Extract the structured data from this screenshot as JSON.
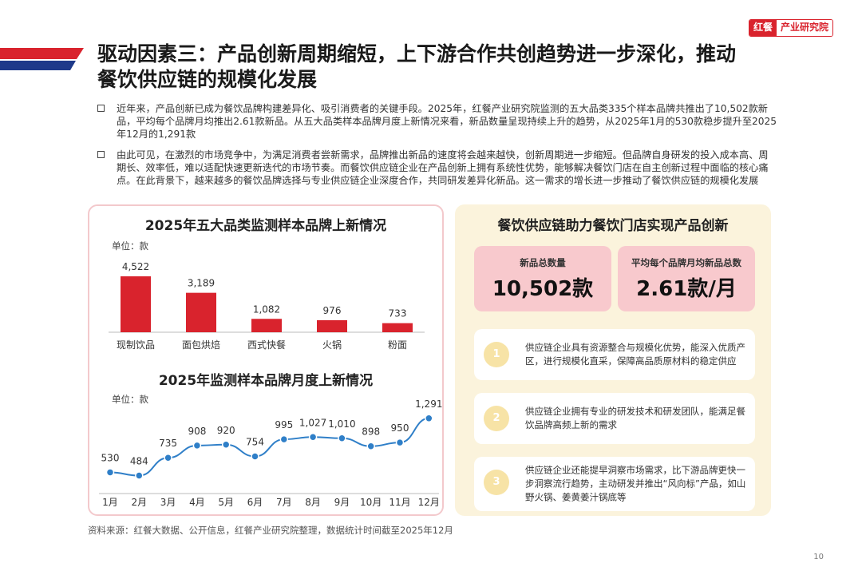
{
  "header": {
    "title": "驱动因素三：产品创新周期缩短，上下游合作共创趋势进一步深化，推动餐饮供应链的规模化发展",
    "logo_mark": "红餐",
    "logo_text": "产业研究院",
    "accent": "#d9232d"
  },
  "paragraphs": [
    "近年来，产品创新已成为餐饮品牌构建差异化、吸引消费者的关键手段。2025年，红餐产业研究院监测的五大品类335个样本品牌共推出了10,502款新品，平均每个品牌月均推出2.61款新品。从五大品类样本品牌月度上新情况来看，新品数量呈现持续上升的趋势，从2025年1月的530款稳步提升至2025年12月的1,291款",
    "由此可见，在激烈的市场竞争中，为满足消费者尝新需求，品牌推出新品的速度将会越来越快，创新周期进一步缩短。但品牌自身研发的投入成本高、周期长、效率低，难以适配快速更新迭代的市场节奏。而餐饮供应链企业在产品创新上拥有系统性优势，能够解决餐饮门店在自主创新过程中面临的核心痛点。在此背景下，越来越多的餐饮品牌选择与专业供应链企业深度合作，共同研发差异化新品。这一需求的增长进一步推动了餐饮供应链的规模化发展"
  ],
  "chart_data": [
    {
      "type": "bar",
      "title": "2025年五大品类监测样本品牌上新情况",
      "unit": "单位：款",
      "categories": [
        "现制饮品",
        "面包烘焙",
        "西式快餐",
        "火锅",
        "粉面"
      ],
      "values": [
        4522,
        3189,
        1082,
        976,
        733
      ],
      "value_labels": [
        "4,522",
        "3,189",
        "1,082",
        "976",
        "733"
      ],
      "color": "#d9232d"
    },
    {
      "type": "line",
      "title": "2025年监测样本品牌月度上新情况",
      "unit": "单位：款",
      "categories": [
        "1月",
        "2月",
        "3月",
        "4月",
        "5月",
        "6月",
        "7月",
        "8月",
        "9月",
        "10月",
        "11月",
        "12月"
      ],
      "values": [
        530,
        484,
        735,
        908,
        920,
        754,
        995,
        1027,
        1010,
        898,
        950,
        1291
      ],
      "value_labels": [
        "530",
        "484",
        "735",
        "908",
        "920",
        "754",
        "995",
        "1,027",
        "1,010",
        "898",
        "950",
        "1,291"
      ],
      "color": "#2f7fc8"
    }
  ],
  "right_panel": {
    "title": "餐饮供应链助力餐饮门店实现产品创新",
    "stats": [
      {
        "label": "新品总数量",
        "value": "10,502款"
      },
      {
        "label": "平均每个品牌月均新品总数",
        "value": "2.61款/月"
      }
    ],
    "items": [
      {
        "num": "1",
        "text": "供应链企业具有资源整合与规模化优势，能深入优质产区，进行规模化直采，保障高品质原材料的稳定供应"
      },
      {
        "num": "2",
        "text": "供应链企业拥有专业的研发技术和研发团队，能满足餐饮品牌高频上新的需求"
      },
      {
        "num": "3",
        "text": "供应链企业还能提早洞察市场需求，比下游品牌更快一步洞察流行趋势，主动研发并推出“风向标”产品，如山野火锅、姜黄姜汁锅底等"
      }
    ]
  },
  "footer": {
    "source": "资料来源：红餐大数据、公开信息，红餐产业研究院整理，数据统计时间截至2025年12月",
    "page": "10"
  }
}
